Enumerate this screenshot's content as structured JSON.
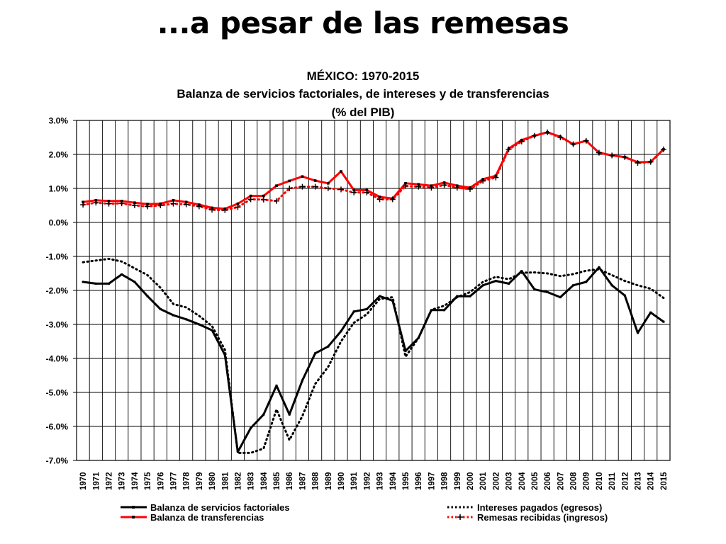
{
  "slide": {
    "title": "...a pesar de las remesas"
  },
  "chart_data": {
    "type": "line",
    "title": "MÉXICO: 1970-2015",
    "subtitle": "Balanza de servicios factoriales, de intereses y de transferencias",
    "subtitle2": "(% del PIB)",
    "ylim": [
      -7.0,
      3.0
    ],
    "y_ticks": [
      "3.0%",
      "2.0%",
      "1.0%",
      "0.0%",
      "-1.0%",
      "-2.0%",
      "-3.0%",
      "-4.0%",
      "-5.0%",
      "-6.0%",
      "-7.0%"
    ],
    "x": [
      "1970",
      "1971",
      "1972",
      "1973",
      "1974",
      "1975",
      "1976",
      "1977",
      "1978",
      "1979",
      "1980",
      "1981",
      "1982",
      "1983",
      "1984",
      "1985",
      "1986",
      "1987",
      "1988",
      "1989",
      "1990",
      "1991",
      "1992",
      "1993",
      "1994",
      "1995",
      "1996",
      "1997",
      "1998",
      "1999",
      "2000",
      "2001",
      "2002",
      "2003",
      "2004",
      "2005",
      "2006",
      "2007",
      "2008",
      "2009",
      "2010",
      "2011",
      "2012",
      "2013",
      "2014",
      "2015"
    ],
    "grid": true,
    "legend_position": "bottom",
    "series": [
      {
        "name": "Balanza de servicios factoriales",
        "color": "#000000",
        "style": "solid",
        "values": [
          -1.75,
          -1.8,
          -1.8,
          -1.53,
          -1.75,
          -2.17,
          -2.55,
          -2.73,
          -2.85,
          -3.0,
          -3.17,
          -3.9,
          -6.75,
          -6.05,
          -5.65,
          -4.8,
          -5.65,
          -4.65,
          -3.85,
          -3.65,
          -3.2,
          -2.62,
          -2.55,
          -2.17,
          -2.3,
          -3.78,
          -3.4,
          -2.58,
          -2.58,
          -2.17,
          -2.17,
          -1.85,
          -1.72,
          -1.8,
          -1.43,
          -1.97,
          -2.05,
          -2.2,
          -1.85,
          -1.75,
          -1.32,
          -1.85,
          -2.15,
          -3.25,
          -2.65,
          -2.92
        ]
      },
      {
        "name": "Balanza de transferencias",
        "color": "#ff0000",
        "style": "solid",
        "values": [
          0.6,
          0.65,
          0.63,
          0.63,
          0.58,
          0.54,
          0.55,
          0.65,
          0.6,
          0.52,
          0.43,
          0.4,
          0.55,
          0.78,
          0.78,
          1.08,
          1.22,
          1.35,
          1.23,
          1.15,
          1.5,
          0.95,
          0.95,
          0.75,
          0.7,
          1.15,
          1.12,
          1.08,
          1.17,
          1.08,
          1.02,
          1.27,
          1.37,
          2.17,
          2.42,
          2.55,
          2.65,
          2.52,
          2.3,
          2.4,
          2.05,
          1.97,
          1.92,
          1.77,
          1.78,
          2.15
        ]
      },
      {
        "name": "Intereses pagados (egresos)",
        "color": "#000000",
        "style": "dotted",
        "values": [
          -1.17,
          -1.12,
          -1.07,
          -1.15,
          -1.35,
          -1.55,
          -1.92,
          -2.4,
          -2.5,
          -2.75,
          -3.05,
          -3.75,
          -6.78,
          -6.78,
          -6.65,
          -5.5,
          -6.4,
          -5.7,
          -4.75,
          -4.25,
          -3.5,
          -2.95,
          -2.7,
          -2.25,
          -2.2,
          -3.95,
          -3.4,
          -2.57,
          -2.45,
          -2.2,
          -2.05,
          -1.75,
          -1.6,
          -1.67,
          -1.48,
          -1.47,
          -1.5,
          -1.58,
          -1.52,
          -1.42,
          -1.38,
          -1.55,
          -1.72,
          -1.85,
          -1.95,
          -2.22
        ]
      },
      {
        "name": "Remesas recibidas (ingresos)",
        "color": "#ff0000",
        "style": "dotted",
        "marker_color": "#000000",
        "marker": "plus",
        "values": [
          0.52,
          0.58,
          0.55,
          0.56,
          0.5,
          0.47,
          0.5,
          0.55,
          0.53,
          0.47,
          0.37,
          0.36,
          0.45,
          0.68,
          0.67,
          0.63,
          1.0,
          1.05,
          1.05,
          1.0,
          0.97,
          0.88,
          0.88,
          0.68,
          0.68,
          1.07,
          1.05,
          1.02,
          1.1,
          1.02,
          0.98,
          1.22,
          1.32,
          2.15,
          2.38,
          2.55,
          2.65,
          2.5,
          2.3,
          2.4,
          2.05,
          1.97,
          1.92,
          1.75,
          1.78,
          2.15
        ]
      }
    ]
  }
}
